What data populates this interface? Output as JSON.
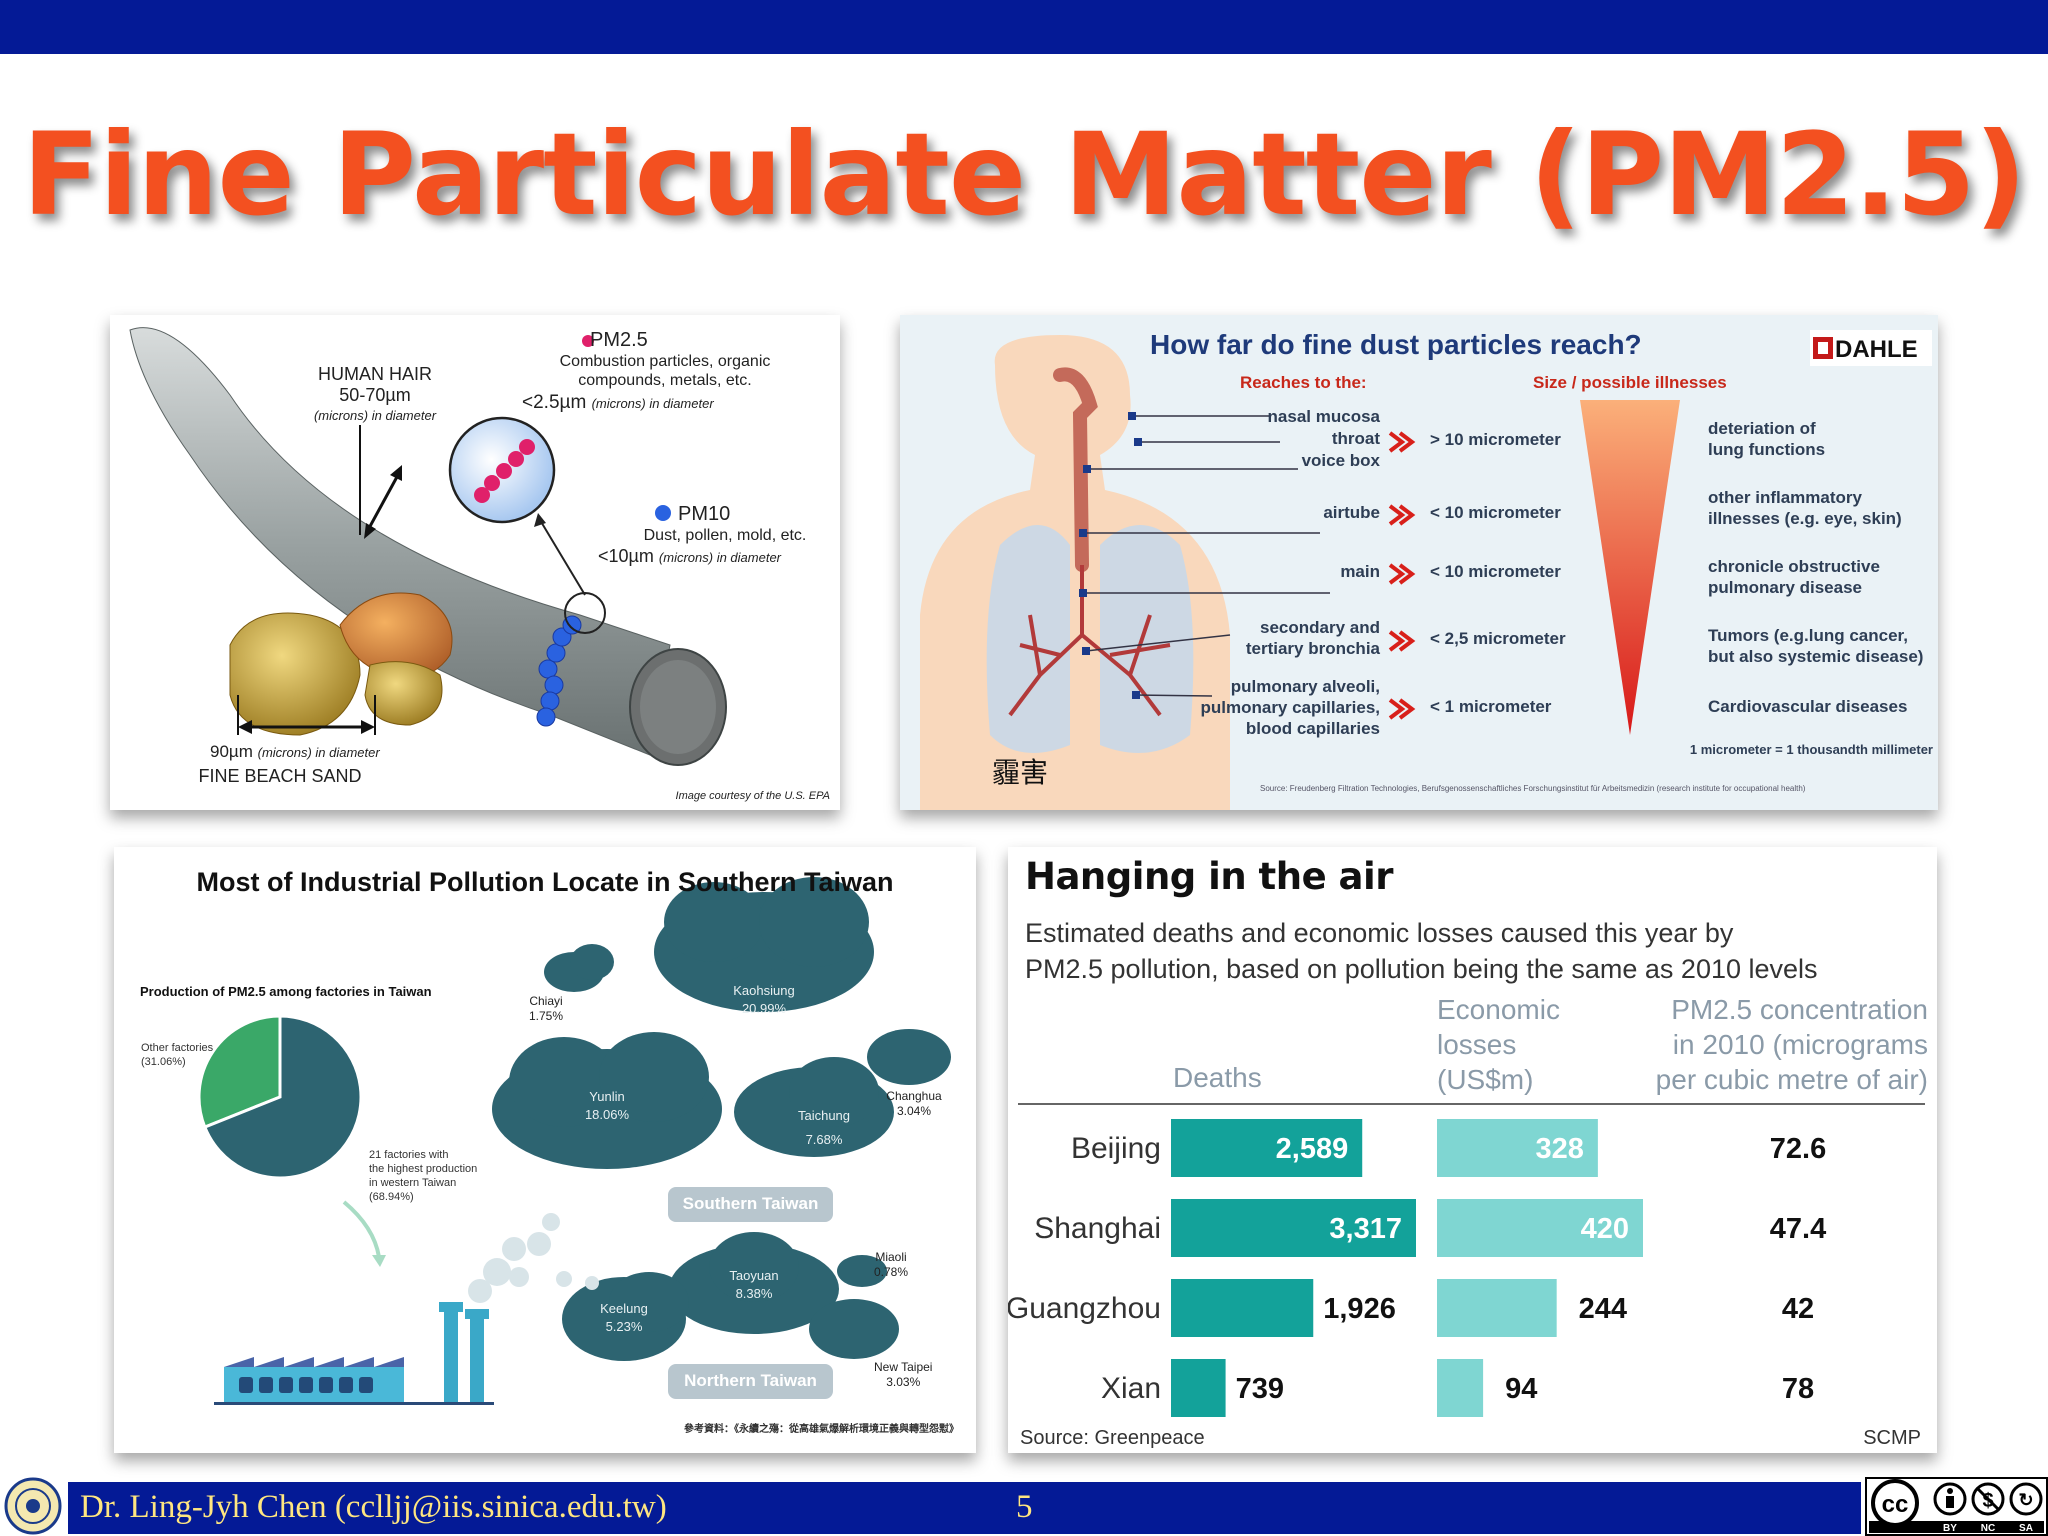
{
  "slide": {
    "title": "Fine Particulate Matter (PM2.5)"
  },
  "hair_panel": {
    "pm25_label": "PM2.5",
    "pm25_desc_1": "Combustion particles, organic",
    "pm25_desc_2": "compounds, metals, etc.",
    "pm25_size": "<2.5µm",
    "pm25_size_note": "(microns) in diameter",
    "hair_label": "HUMAN HAIR",
    "hair_size": "50-70µm",
    "hair_size_note": "(microns) in diameter",
    "pm10_label": "PM10",
    "pm10_desc": "Dust, pollen, mold, etc.",
    "pm10_size": "<10µm",
    "pm10_size_note": "(microns) in diameter",
    "sand_size": "90µm",
    "sand_size_note": "(microns) in diameter",
    "sand_label": "FINE BEACH SAND",
    "credit": "Image courtesy of the U.S. EPA"
  },
  "lung_panel": {
    "title": "How far do fine dust particles reach?",
    "brand": "DAHLE",
    "col_reach": "Reaches to the:",
    "col_size": "Size / possible illnesses",
    "rows": [
      {
        "parts": [
          "nasal mucosa",
          "throat",
          "voice box"
        ],
        "size": "> 10 micrometer",
        "illness": [
          "deteriation of",
          "lung functions"
        ]
      },
      {
        "parts": [
          "airtube"
        ],
        "size": "< 10 micrometer",
        "illness": [
          "other inflammatory",
          "illnesses (e.g. eye, skin)"
        ]
      },
      {
        "parts": [
          "main"
        ],
        "size": "< 10 micrometer",
        "illness": [
          "chronicle obstructive",
          "pulmonary disease"
        ]
      },
      {
        "parts": [
          "secondary and",
          "tertiary bronchia"
        ],
        "size": "< 2,5 micrometer",
        "illness": [
          "Tumors (e.g.lung cancer,",
          "but also systemic disease)"
        ]
      },
      {
        "parts": [
          "pulmonary alveoli,",
          "pulmonary capillaries,",
          "blood capillaries"
        ],
        "size": "< 1 micrometer",
        "illness": [
          "Cardiovascular diseases"
        ]
      }
    ],
    "footnote": "1 micrometer = 1 thousandth millimeter",
    "caption": "霾害",
    "source": "Source: Freudenberg Filtration Technologies, Berufsgenossenschaftliches Forschungsinstitut für Arbeitsmedizin (research institute for occupational health)"
  },
  "taiwan_panel": {
    "title": "Most of Industrial Pollution Locate in Southern Taiwan",
    "subtitle": "Production of PM2.5 among factories in Taiwan",
    "pie_other_label": "Other factories",
    "pie_other_value": "(31.06%)",
    "pie_main_label_1": "21 factories with",
    "pie_main_label_2": "the highest production",
    "pie_main_label_3": "in western Taiwan",
    "pie_main_value": "(68.94%)",
    "pie_fractions": [
      0.3106,
      0.6894
    ],
    "clouds": [
      {
        "name": "Chiayi",
        "value": "1.75%"
      },
      {
        "name": "Kaohsiung",
        "value": "20.99%"
      },
      {
        "name": "Yunlin",
        "value": "18.06%"
      },
      {
        "name": "Taichung",
        "value": "7.68%"
      },
      {
        "name": "Changhua",
        "value": "3.04%"
      },
      {
        "name": "Taoyuan",
        "value": "8.38%"
      },
      {
        "name": "Keelung",
        "value": "5.23%"
      },
      {
        "name": "Miaoli",
        "value": "0.78%"
      },
      {
        "name": "New Taipei",
        "value": "3.03%"
      }
    ],
    "south_label": "Southern Taiwan",
    "north_label": "Northern Taiwan",
    "reference": "參考資料：《永續之殤：從高雄氣爆解析環境正義與轉型怨懟》"
  },
  "chart_data": {
    "type": "table",
    "title": "Hanging in the air",
    "subtitle_1": "Estimated deaths and economic losses caused this year by",
    "subtitle_2": "PM2.5 pollution, based on pollution being the same as 2010 levels",
    "columns": {
      "deaths": "Deaths",
      "losses": [
        "Economic",
        "losses",
        "(US$m)"
      ],
      "conc": [
        "PM2.5 concentration",
        "in 2010 (micrograms",
        "per cubic metre of air)"
      ]
    },
    "categories": [
      "Beijing",
      "Shanghai",
      "Guangzhou",
      "Xian"
    ],
    "series": [
      {
        "name": "Deaths",
        "values": [
          2589,
          3317,
          1926,
          739
        ],
        "labels": [
          "2,589",
          "3,317",
          "1,926",
          "739"
        ]
      },
      {
        "name": "Economic losses (US$m)",
        "values": [
          328,
          420,
          244,
          94
        ],
        "labels": [
          "328",
          "420",
          "244",
          "94"
        ]
      },
      {
        "name": "PM2.5 concentration in 2010",
        "values": [
          72.6,
          47.4,
          42,
          78
        ],
        "labels": [
          "72.6",
          "47.4",
          "42",
          "78"
        ]
      }
    ],
    "source": "Source: Greenpeace",
    "credit": "SCMP",
    "colors": {
      "deaths": "#13a29a",
      "losses": "#7fd6d2"
    }
  },
  "footer": {
    "author": "Dr. Ling-Jyh Chen (cclljj@iis.sinica.edu.tw)",
    "page": "5",
    "license": [
      "BY",
      "NC",
      "SA"
    ],
    "colors": {
      "bar": "#041a96",
      "text": "#ffe680"
    }
  }
}
